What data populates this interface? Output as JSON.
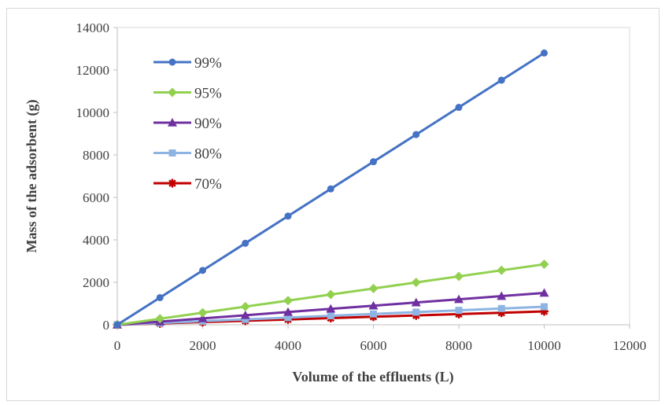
{
  "chart_data": {
    "type": "line",
    "title": "",
    "xlabel": "Volume of the effluents (L)",
    "ylabel": "Mass of the adsorbent (g)",
    "xlim": [
      0,
      12000
    ],
    "ylim": [
      0,
      14000
    ],
    "x_ticks": [
      "0",
      "2000",
      "4000",
      "6000",
      "8000",
      "10000",
      "12000"
    ],
    "y_ticks": [
      "0",
      "2000",
      "4000",
      "6000",
      "8000",
      "10000",
      "12000",
      "14000"
    ],
    "grid": false,
    "legend_position": "top-left",
    "x": [
      0,
      1000,
      2000,
      3000,
      4000,
      5000,
      6000,
      7000,
      8000,
      9000,
      10000
    ],
    "series": [
      {
        "name": "99%",
        "color": "#4472c4",
        "marker": "circle",
        "values": [
          0,
          1280,
          2560,
          3840,
          5120,
          6400,
          7680,
          8960,
          10240,
          11520,
          12800
        ]
      },
      {
        "name": "95%",
        "color": "#92d050",
        "marker": "diamond",
        "values": [
          0,
          285,
          570,
          855,
          1140,
          1425,
          1710,
          1995,
          2280,
          2565,
          2850
        ]
      },
      {
        "name": "90%",
        "color": "#7030a0",
        "marker": "triangle",
        "values": [
          0,
          150,
          300,
          450,
          600,
          750,
          900,
          1050,
          1200,
          1350,
          1500
        ]
      },
      {
        "name": "80%",
        "color": "#8eb4e3",
        "marker": "square",
        "values": [
          0,
          85,
          170,
          255,
          340,
          425,
          510,
          595,
          680,
          765,
          850
        ]
      },
      {
        "name": "70%",
        "color": "#c00000",
        "marker": "star",
        "values": [
          0,
          63,
          126,
          189,
          252,
          315,
          378,
          441,
          504,
          567,
          630
        ]
      }
    ]
  }
}
